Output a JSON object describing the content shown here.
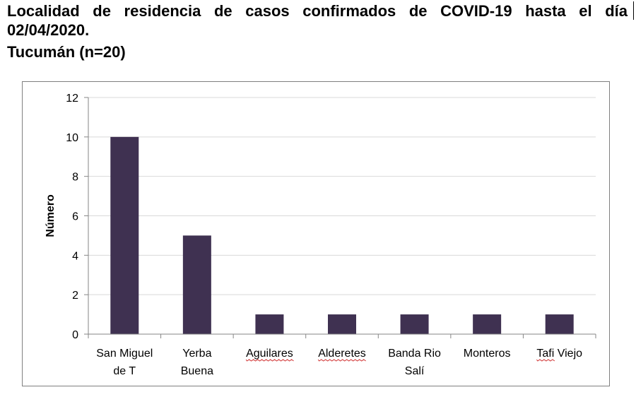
{
  "heading": {
    "line1": "Localidad de residencia de casos confirmados de COVID-19 hasta el día",
    "line2": "02/04/2020.",
    "subtitle": "Tucumán (n=20)"
  },
  "chart_data": {
    "type": "bar",
    "categories": [
      [
        "San Miguel",
        "de T"
      ],
      [
        "Yerba",
        "Buena"
      ],
      [
        "Aguilares"
      ],
      [
        "Alderetes"
      ],
      [
        "Banda Rio",
        "Salí"
      ],
      [
        "Monteros"
      ],
      [
        "Tafi Viejo"
      ]
    ],
    "values": [
      10,
      5,
      1,
      1,
      1,
      1,
      1
    ],
    "ylabel": "Número",
    "xlabel": "",
    "ylim": [
      0,
      12
    ],
    "yticks": [
      0,
      2,
      4,
      6,
      8,
      10,
      12
    ],
    "grid": true,
    "bar_color": "#3f3151",
    "grid_color": "#d9d9d9",
    "spellcheck_underlined": [
      "Aguilares",
      "Alderetes",
      "Tafi"
    ]
  }
}
